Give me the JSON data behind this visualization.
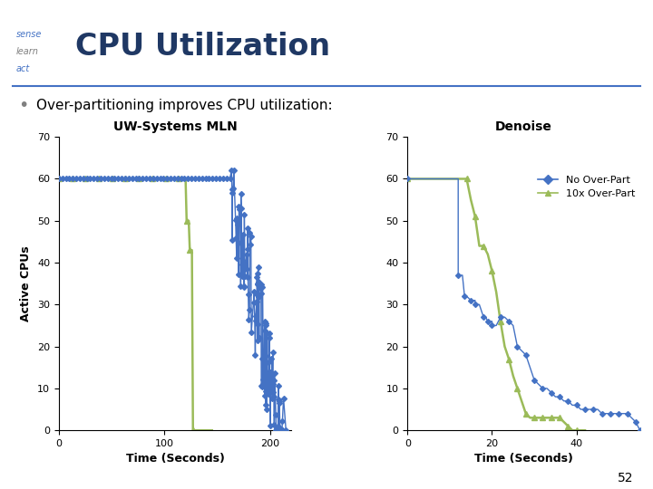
{
  "title": "CPU Utilization",
  "subtitle": "Over-partitioning improves CPU utilization:",
  "page_num": "52",
  "blue_color": "#4472C4",
  "green_color": "#9BBB59",
  "plot1_title": "UW-Systems MLN",
  "plot2_title": "Denoise",
  "ylabel": "Active CPUs",
  "xlabel": "Time (Seconds)",
  "legend_no": "No Over-Part",
  "legend_10x": "10x Over-Part",
  "plot1_ylim": [
    0,
    70
  ],
  "plot1_xlim": [
    0,
    220
  ],
  "plot2_ylim": [
    0,
    70
  ],
  "plot2_xlim": [
    0,
    55
  ],
  "plot1_yticks": [
    0,
    10,
    20,
    30,
    40,
    50,
    60,
    70
  ],
  "plot1_xticks": [
    0,
    100,
    200
  ],
  "plot2_yticks": [
    0,
    10,
    20,
    30,
    40,
    50,
    60,
    70
  ],
  "plot2_xticks": [
    0,
    20,
    40
  ],
  "bg_color": "#FFFFFF",
  "header_line_color": "#4472C4",
  "sense_color": "#4472C4",
  "learn_color": "#808080",
  "act_color": "#4472C4",
  "title_color": "#1F3864",
  "subtitle_bullet_color": "#808080",
  "subtitle_text_color": "#000000"
}
